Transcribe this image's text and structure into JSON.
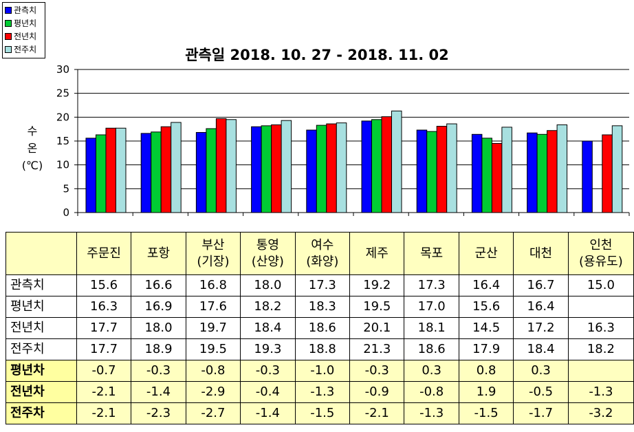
{
  "legend": [
    {
      "label": "관측치",
      "color": "#0000ff"
    },
    {
      "label": "평년치",
      "color": "#00cc33"
    },
    {
      "label": "전년치",
      "color": "#ff0000"
    },
    {
      "label": "전주치",
      "color": "#a8e0e0"
    }
  ],
  "ylabel": [
    "수",
    "온",
    "(℃)"
  ],
  "chart_data": {
    "type": "bar",
    "title": "관측일 2018. 10. 27 - 2018. 11. 02",
    "ylabel": "수온(℃)",
    "ylim": [
      0,
      30
    ],
    "yticks": [
      "0",
      "5",
      "10",
      "15",
      "20",
      "25",
      "30"
    ],
    "grid": true,
    "categories": [
      "주문진",
      "포항",
      "부산(기장)",
      "통영(산양)",
      "여수(화양)",
      "제주",
      "목포",
      "군산",
      "대천",
      "인천(용유도)"
    ],
    "series": [
      {
        "name": "관측치",
        "color": "#0000ff",
        "values": [
          15.6,
          16.6,
          16.8,
          18.0,
          17.3,
          19.2,
          17.3,
          16.4,
          16.7,
          15.0
        ]
      },
      {
        "name": "평년치",
        "color": "#00cc33",
        "values": [
          16.3,
          16.9,
          17.6,
          18.2,
          18.3,
          19.5,
          17.0,
          15.6,
          16.4,
          null
        ]
      },
      {
        "name": "전년치",
        "color": "#ff0000",
        "values": [
          17.7,
          18.0,
          19.7,
          18.4,
          18.6,
          20.1,
          18.1,
          14.5,
          17.2,
          16.3
        ]
      },
      {
        "name": "전주치",
        "color": "#a8e0e0",
        "values": [
          17.7,
          18.9,
          19.5,
          19.3,
          18.8,
          21.3,
          18.6,
          17.9,
          18.4,
          18.2
        ]
      }
    ]
  },
  "table": {
    "headers": [
      [
        "주문진"
      ],
      [
        "포항"
      ],
      [
        "부산",
        "(기장)"
      ],
      [
        "통영",
        "(산양)"
      ],
      [
        "여수",
        "(화양)"
      ],
      [
        "제주"
      ],
      [
        "목포"
      ],
      [
        "군산"
      ],
      [
        "대천"
      ],
      [
        "인천",
        "(용유도)"
      ]
    ],
    "rows": [
      {
        "label": "관측치",
        "diff": false,
        "values": [
          "15.6",
          "16.6",
          "16.8",
          "18.0",
          "17.3",
          "19.2",
          "17.3",
          "16.4",
          "16.7",
          "15.0"
        ]
      },
      {
        "label": "평년치",
        "diff": false,
        "values": [
          "16.3",
          "16.9",
          "17.6",
          "18.2",
          "18.3",
          "19.5",
          "17.0",
          "15.6",
          "16.4",
          ""
        ]
      },
      {
        "label": "전년치",
        "diff": false,
        "values": [
          "17.7",
          "18.0",
          "19.7",
          "18.4",
          "18.6",
          "20.1",
          "18.1",
          "14.5",
          "17.2",
          "16.3"
        ]
      },
      {
        "label": "전주치",
        "diff": false,
        "values": [
          "17.7",
          "18.9",
          "19.5",
          "19.3",
          "18.8",
          "21.3",
          "18.6",
          "17.9",
          "18.4",
          "18.2"
        ]
      },
      {
        "label": "평년차",
        "diff": true,
        "values": [
          "-0.7",
          "-0.3",
          "-0.8",
          "-0.3",
          "-1.0",
          "-0.3",
          "0.3",
          "0.8",
          "0.3",
          ""
        ]
      },
      {
        "label": "전년차",
        "diff": true,
        "values": [
          "-2.1",
          "-1.4",
          "-2.9",
          "-0.4",
          "-1.3",
          "-0.9",
          "-0.8",
          "1.9",
          "-0.5",
          "-1.3"
        ]
      },
      {
        "label": "전주차",
        "diff": true,
        "values": [
          "-2.1",
          "-2.3",
          "-2.7",
          "-1.4",
          "-1.5",
          "-2.1",
          "-1.3",
          "-1.5",
          "-1.7",
          "-3.2"
        ]
      }
    ]
  }
}
